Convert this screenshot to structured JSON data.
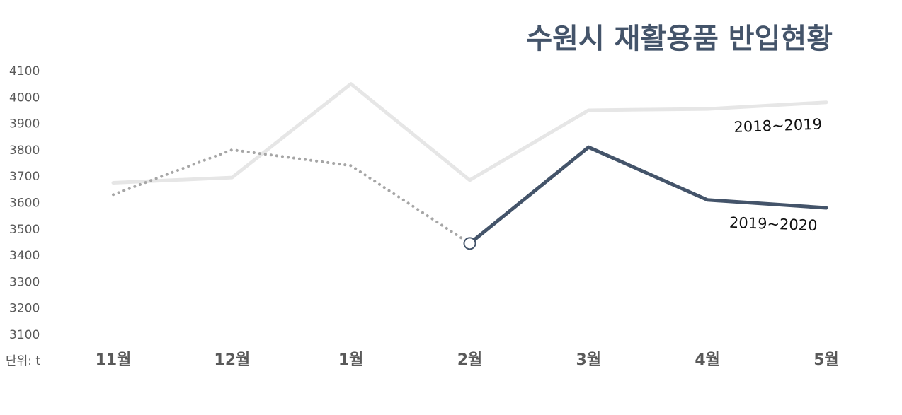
{
  "chart_data": {
    "type": "line",
    "title": "수원시 재활용품 반입현황",
    "unit_label": "단위: t",
    "categories": [
      "11월",
      "12월",
      "1월",
      "2월",
      "3월",
      "4월",
      "5월"
    ],
    "y_ticks": [
      "4100",
      "4000",
      "3900",
      "3800",
      "3700",
      "3600",
      "3500",
      "3400",
      "3300",
      "3200",
      "3100"
    ],
    "ylim": [
      3100,
      4100
    ],
    "grid": false,
    "series": [
      {
        "name": "2018~2019",
        "values": [
          3675,
          3695,
          4050,
          3685,
          3950,
          3955,
          3980
        ],
        "color": "#e6e6e6",
        "style": "solid"
      },
      {
        "name": "2019~2020",
        "values": [
          3630,
          3800,
          3740,
          3445,
          3810,
          3610,
          3580
        ],
        "color": "#44546a",
        "dotted_color": "#a6a6a6",
        "style": "dotted-then-solid",
        "dotted_until_index": 3,
        "marker_index": 3
      }
    ]
  }
}
